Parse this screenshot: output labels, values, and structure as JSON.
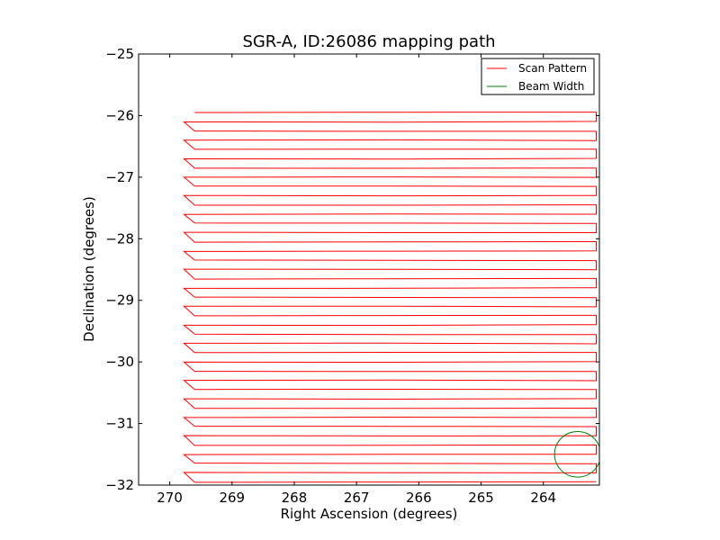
{
  "chart_data": {
    "type": "line",
    "title": "SGR-A, ID:26086 mapping path",
    "xlabel": "Right Ascension (degrees)",
    "ylabel": "Declination (degrees)",
    "xlim": [
      270.5,
      263.1
    ],
    "ylim": [
      -32,
      -25
    ],
    "x_ticks": [
      270,
      269,
      268,
      267,
      266,
      265,
      264
    ],
    "x_tick_labels": [
      "270",
      "269",
      "268",
      "267",
      "266",
      "265",
      "264"
    ],
    "y_ticks": [
      -25,
      -26,
      -27,
      -28,
      -29,
      -30,
      -31,
      -32
    ],
    "y_tick_labels": [
      "−25",
      "−26",
      "−27",
      "−28",
      "−29",
      "−30",
      "−31",
      "−32"
    ],
    "grid": false,
    "legend_position": "top-right",
    "series": [
      {
        "name": "Scan Pattern",
        "color": "#ff0000",
        "scan": {
          "dec_start": -25.95,
          "dec_end": -31.95,
          "dec_step": 0.15,
          "ra_left": 269.65,
          "ra_right": 263.15
        }
      },
      {
        "name": "Beam Width",
        "color": "#008000",
        "circle": {
          "ra": 263.45,
          "dec": -31.5,
          "radius_deg": 0.37
        }
      }
    ]
  }
}
